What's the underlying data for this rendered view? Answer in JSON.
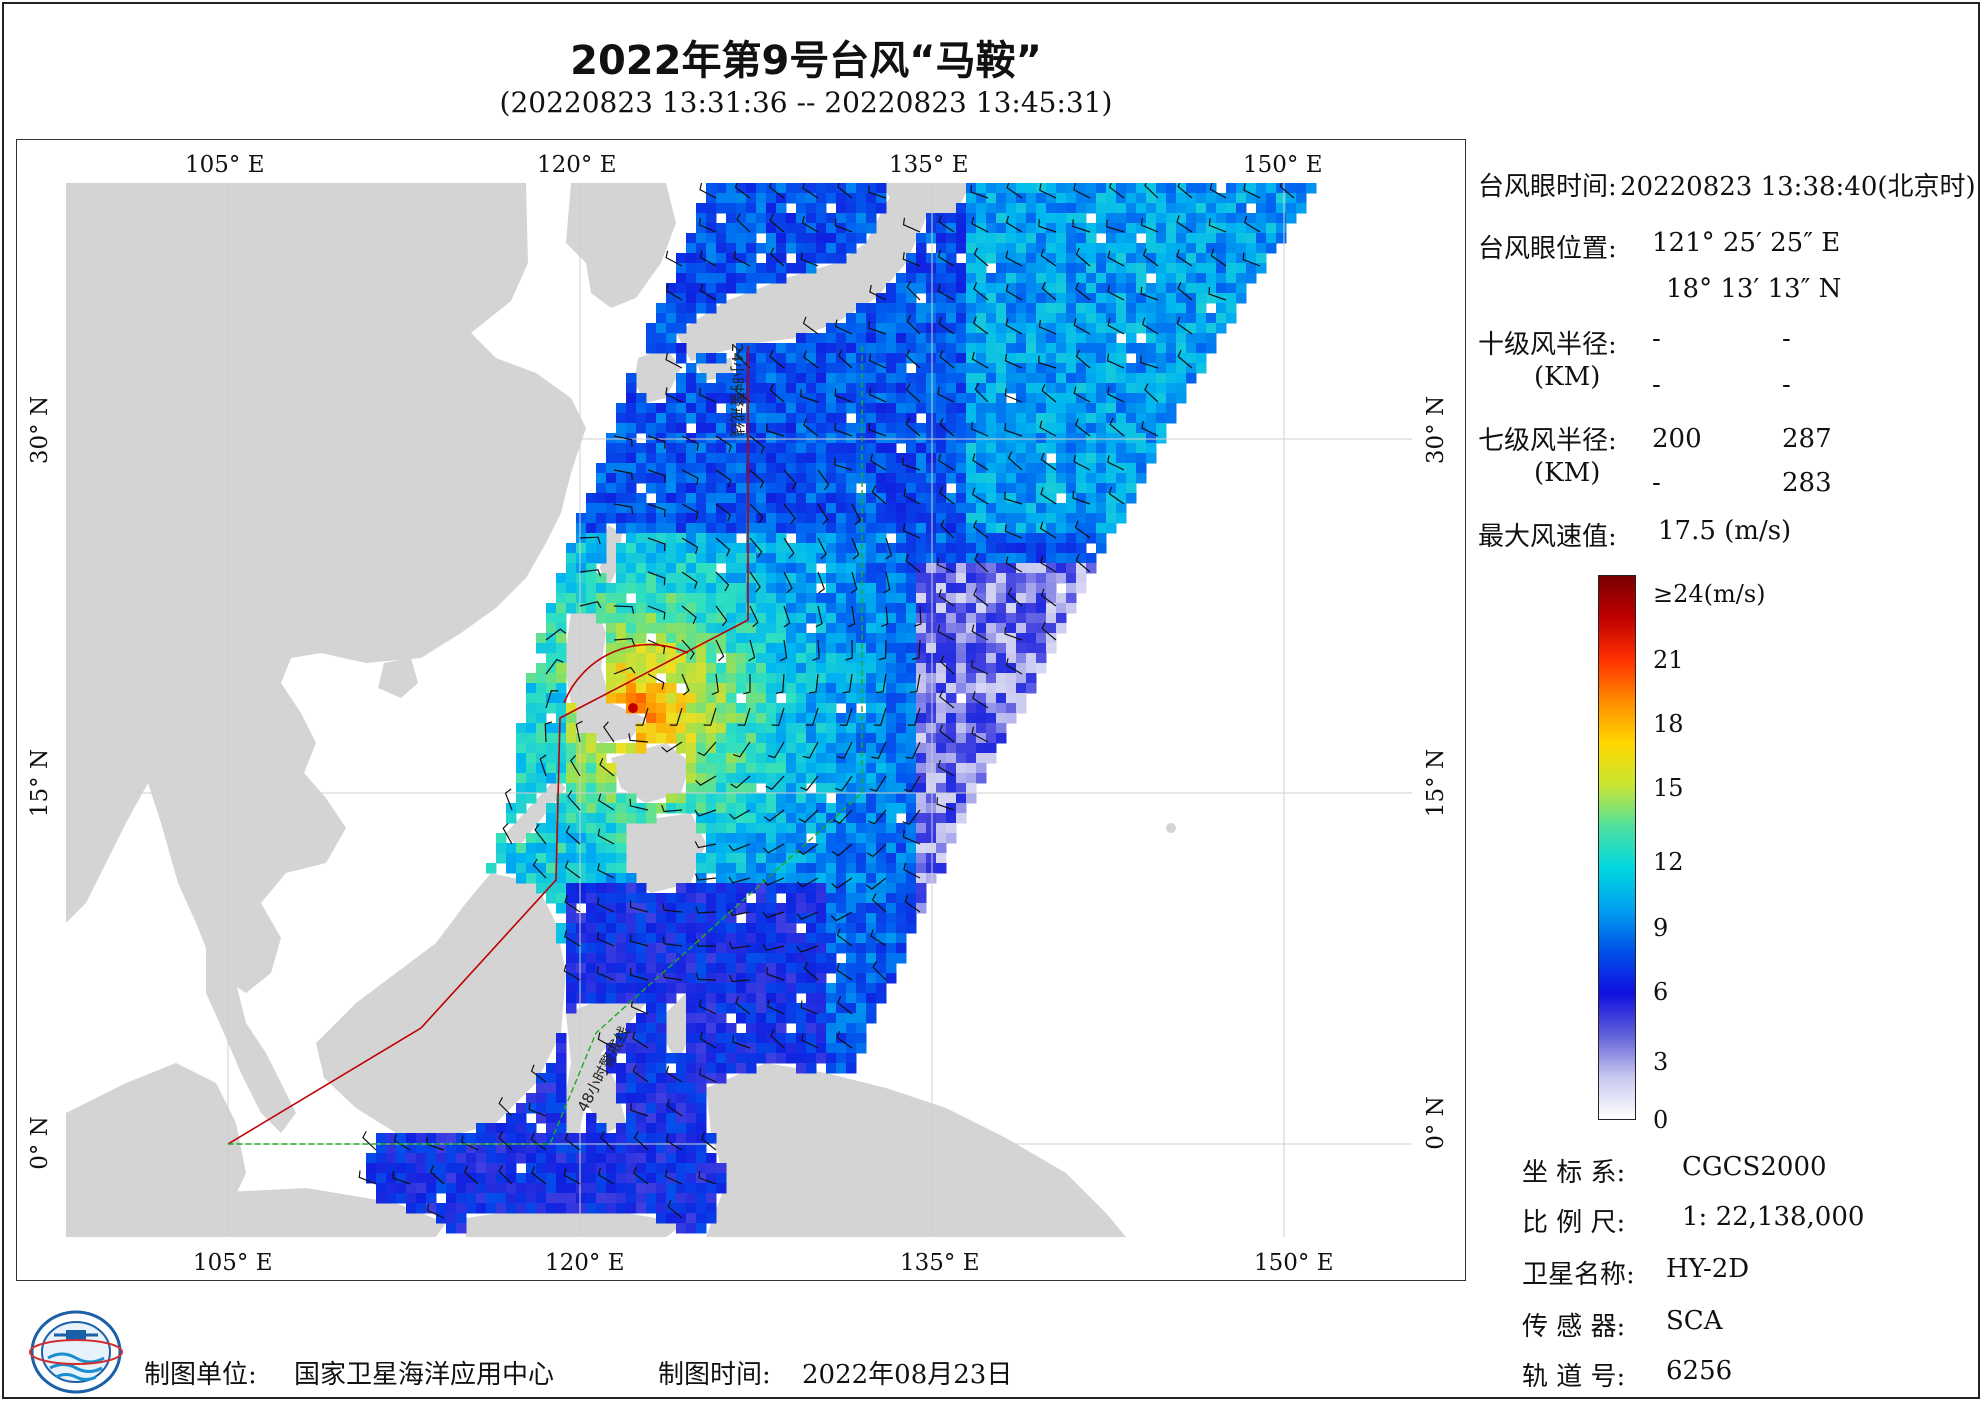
{
  "title": "2022年第9号台风“马鞍”",
  "subtitle": "(20220823 13:31:36 -- 20220823 13:45:31)",
  "axes": {
    "lon_top": [
      "105° E",
      "120° E",
      "135° E",
      "150° E"
    ],
    "lon_bottom": [
      "105° E",
      "120° E",
      "135° E",
      "150° E"
    ],
    "lat_left": [
      "30° N",
      "15° N",
      "0° N"
    ],
    "lat_right": [
      "30° N",
      "15° N",
      "0° N"
    ]
  },
  "map_labels": {
    "line_24h": "24小时警戒线",
    "line_48h": "48小时警戒线"
  },
  "info": {
    "eye_time_label": "台风眼时间:",
    "eye_time_value": "20220823 13:38:40(北京时)",
    "eye_pos_label": "台风眼位置:",
    "eye_lon": "121° 25′ 25″ E",
    "eye_lat": "18° 13′ 13″ N",
    "r10_label": "十级风半径:",
    "km_label": "(KM)",
    "r10_a": "-",
    "r10_b": "-",
    "r10_c": "-",
    "r10_d": "-",
    "r7_label": "七级风半径:",
    "r7_a": "200",
    "r7_b": "287",
    "r7_c": "-",
    "r7_d": "283",
    "max_label": "最大风速值:",
    "max_value": "17.5  (m/s)"
  },
  "colorbar": {
    "labels": [
      "≥24(m/s)",
      "21",
      "18",
      "15",
      "12",
      "9",
      "6",
      "3",
      "0"
    ],
    "colors": [
      "#7a0000",
      "#c00000",
      "#ff3000",
      "#ff8c00",
      "#ffd700",
      "#c8e632",
      "#4fe0a0",
      "#00d8e0",
      "#00a0f0",
      "#0050e8",
      "#1010e0",
      "#6060d8",
      "#c8c8f0",
      "#ffffff"
    ]
  },
  "meta": {
    "crs_label": "坐 标 系:",
    "crs_value": "CGCS2000",
    "scale_label": "比 例 尺:",
    "scale_value": "1: 22,138,000",
    "sat_label": "卫星名称:",
    "sat_value": "HY-2D",
    "sensor_label": "传 感 器:",
    "sensor_value": "SCA",
    "orbit_label": "轨 道 号:",
    "orbit_value": "6256"
  },
  "footer": {
    "org_label": "制图单位:",
    "org_value": "国家卫星海洋应用中心",
    "date_label": "制图时间:",
    "date_value": "2022年08月23日"
  },
  "map_colors": {
    "ocean": "#ffffff",
    "land": "#d4d4d4",
    "line_24h": "#c00000",
    "line_48h": "#22aa22"
  }
}
